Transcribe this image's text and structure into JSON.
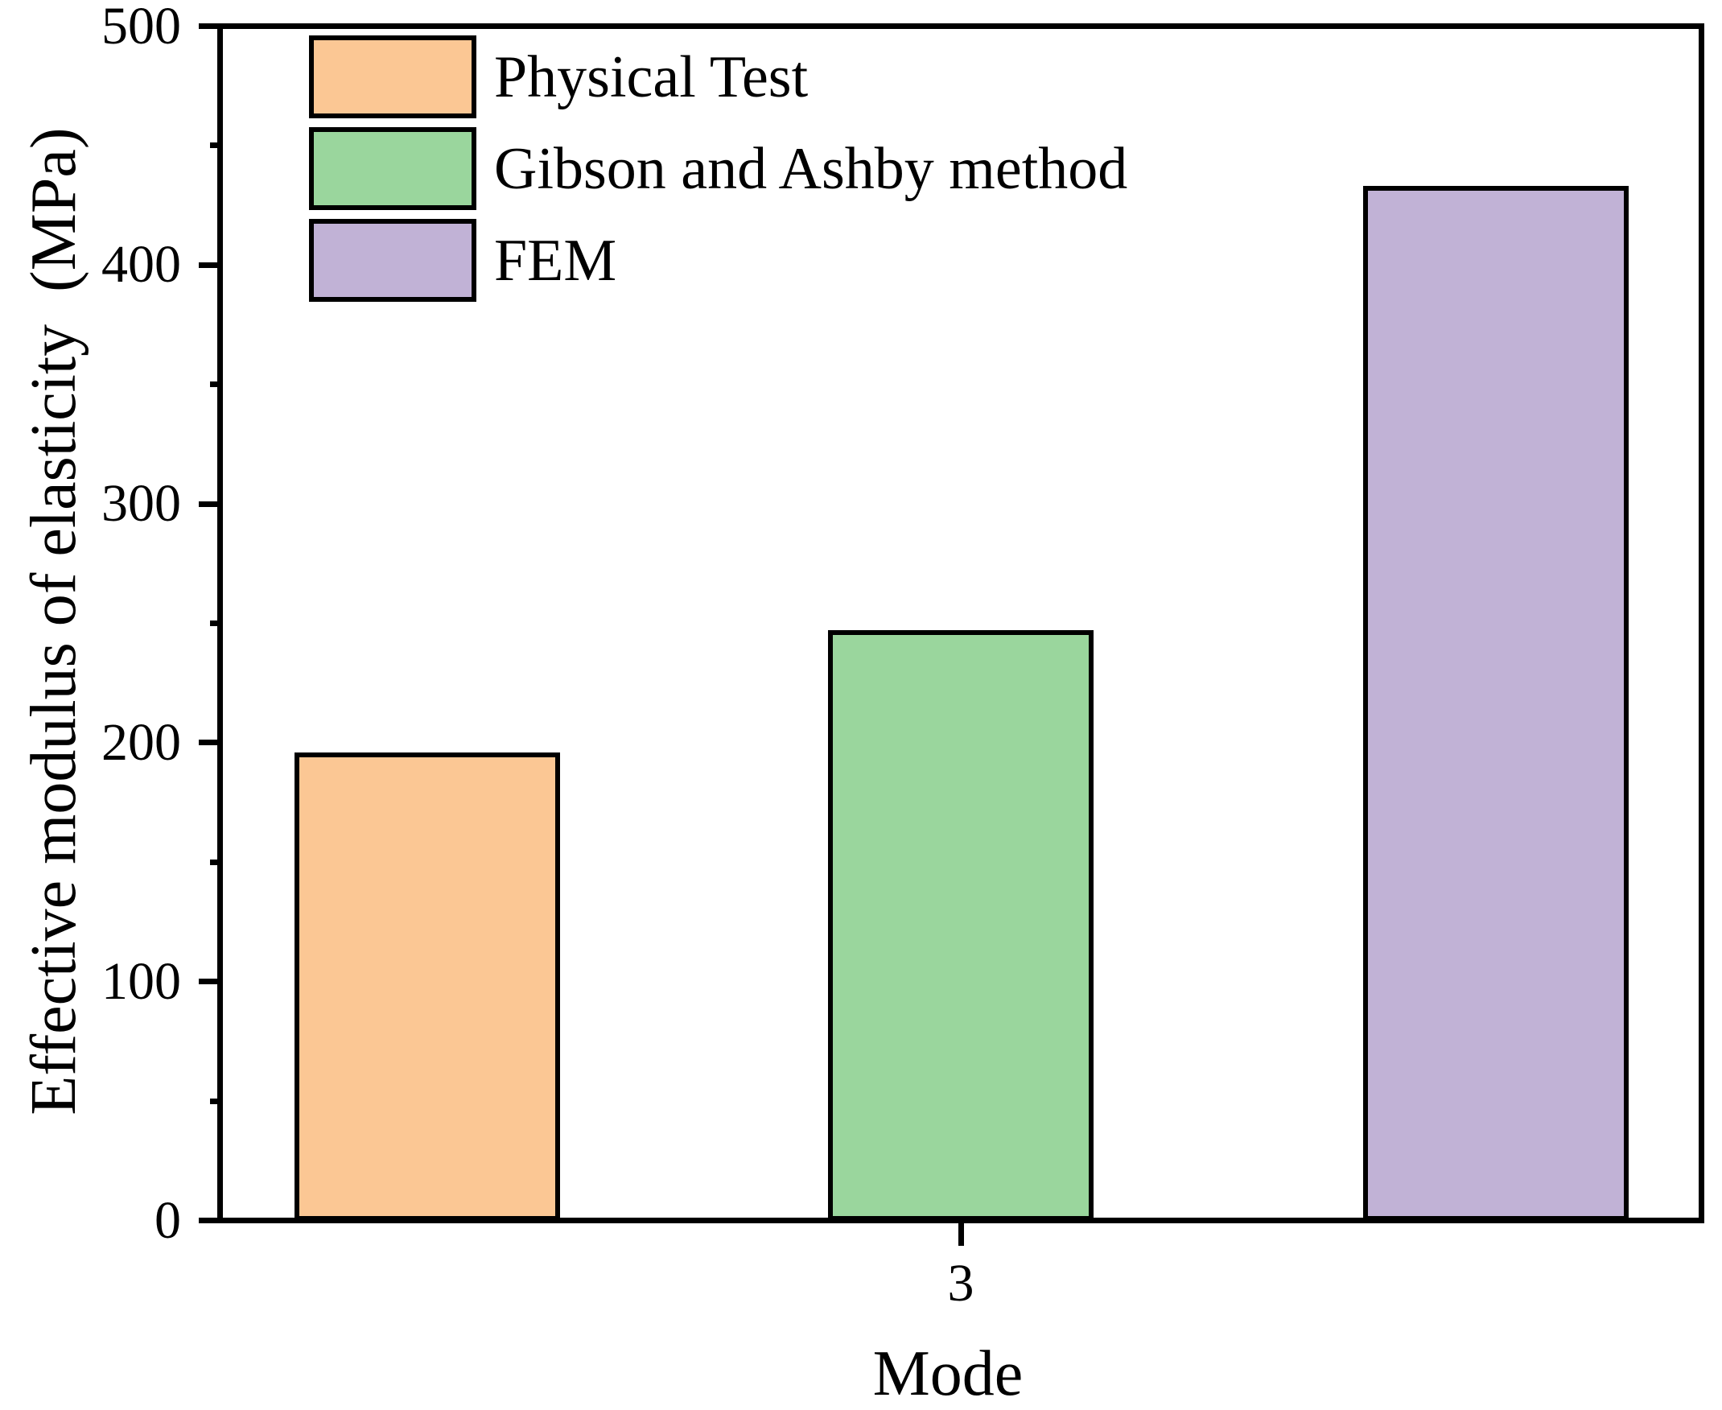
{
  "chart_data": {
    "type": "bar",
    "title": "",
    "xlabel": "Mode",
    "ylabel": "Effective modulus of elasticity  (MPa)",
    "categories": [
      "3"
    ],
    "series": [
      {
        "name": "Physical Test",
        "values": [
          196
        ],
        "color": "#FBC794"
      },
      {
        "name": "Gibson and Ashby method",
        "values": [
          247
        ],
        "color": "#9AD69D"
      },
      {
        "name": "FEM",
        "values": [
          433
        ],
        "color": "#C1B2D6"
      }
    ],
    "ylim": [
      0,
      500
    ],
    "yticks_major": [
      0,
      100,
      200,
      300,
      400,
      500
    ],
    "yticks_minor": [
      50,
      150,
      250,
      350,
      450
    ],
    "grid": false,
    "legend_position": "upper-left",
    "bar_edge_color": "#000000",
    "axis_color": "#000000",
    "background": "#FFFFFF"
  }
}
